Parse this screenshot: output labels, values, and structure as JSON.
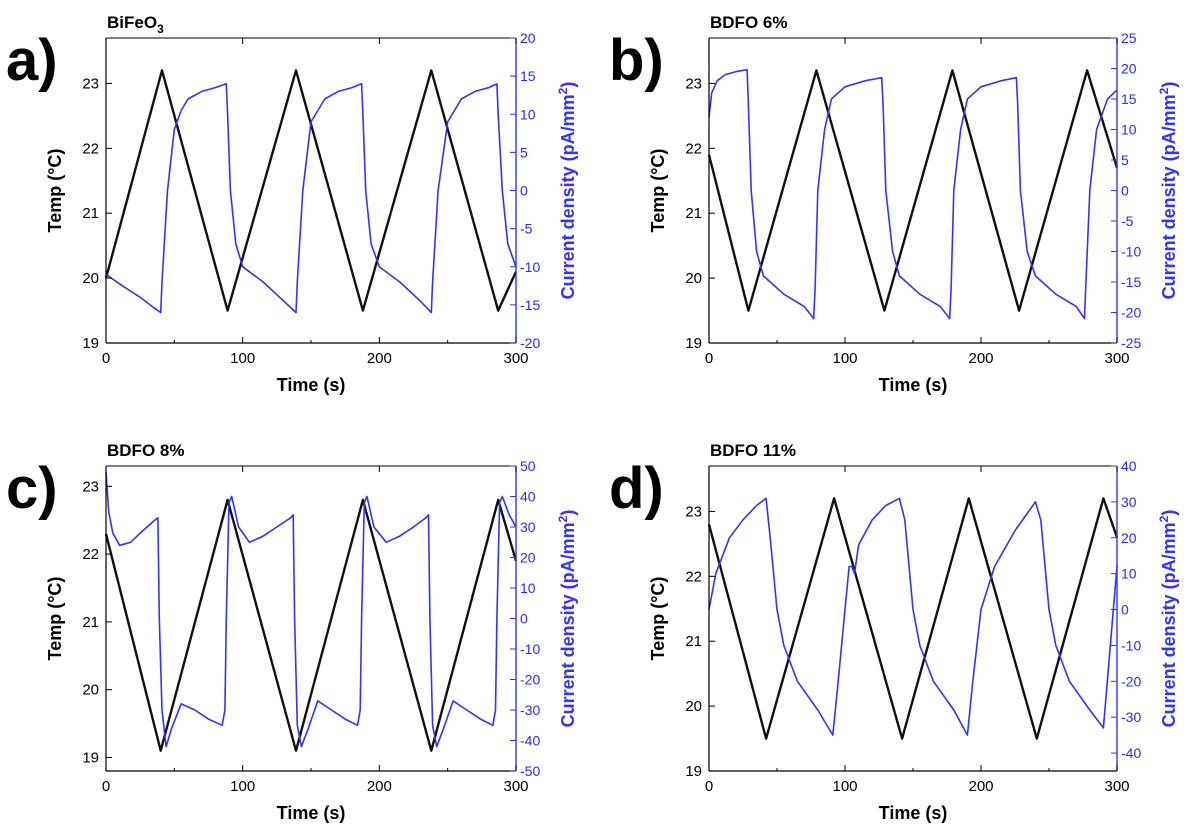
{
  "figure": {
    "panels": [
      {
        "letter": "a)",
        "title": "BiFeO",
        "title_sub": "3"
      },
      {
        "letter": "b)",
        "title": "BDFO 6%",
        "title_sub": ""
      },
      {
        "letter": "c)",
        "title": "BDFO 8%",
        "title_sub": ""
      },
      {
        "letter": "d)",
        "title": "BDFO 11%",
        "title_sub": ""
      }
    ]
  },
  "chart_data": [
    {
      "type": "line",
      "panel": "a)",
      "title": "BiFeO3",
      "xlabel": "Time (s)",
      "ylabel": "Temp (°C)",
      "y2label": "Current density (pA/mm²)",
      "y2label_sup": "2",
      "xlim": [
        0,
        300
      ],
      "ylim": [
        19,
        23.7
      ],
      "y2lim": [
        -20,
        20
      ],
      "xticks": [
        0,
        100,
        200,
        300
      ],
      "yticks": [
        19,
        20,
        21,
        22,
        23
      ],
      "y2ticks": [
        -20,
        -15,
        -10,
        -5,
        0,
        5,
        10,
        15,
        20
      ],
      "series": [
        {
          "axis": "left",
          "color": "#111111",
          "x": [
            0,
            41,
            89,
            139,
            188,
            238,
            287,
            300
          ],
          "y": [
            20.0,
            23.2,
            19.5,
            23.2,
            19.5,
            23.2,
            19.5,
            20.1
          ]
        },
        {
          "axis": "right",
          "color": "#3333ff",
          "x": [
            0,
            12,
            25,
            36,
            40,
            41,
            45,
            50,
            55,
            60,
            70,
            80,
            88,
            89,
            91,
            95,
            100,
            115,
            130,
            139,
            140,
            144,
            150,
            160,
            170,
            180,
            187,
            188,
            190,
            194,
            200,
            215,
            230,
            238,
            239,
            243,
            250,
            260,
            270,
            280,
            286,
            287,
            290,
            294,
            300
          ],
          "y": [
            -11,
            -12.5,
            -14,
            -15.5,
            -16,
            -12,
            0,
            8,
            10.5,
            12,
            13,
            13.5,
            14,
            10,
            0,
            -7,
            -10,
            -12,
            -14.5,
            -16,
            -12,
            0,
            9,
            12,
            13,
            13.5,
            14,
            10,
            0,
            -7,
            -10,
            -12,
            -14.5,
            -16,
            -12,
            0,
            9,
            12,
            13,
            13.5,
            14,
            10,
            0,
            -7,
            -10
          ]
        }
      ]
    },
    {
      "type": "line",
      "panel": "b)",
      "title": "BDFO 6%",
      "xlabel": "Time (s)",
      "ylabel": "Temp (°C)",
      "y2label": "Current density (pA/mm²)",
      "y2label_sup": "2",
      "xlim": [
        0,
        300
      ],
      "ylim": [
        19,
        23.7
      ],
      "y2lim": [
        -25,
        25
      ],
      "xticks": [
        0,
        100,
        200,
        300
      ],
      "yticks": [
        19,
        20,
        21,
        22,
        23
      ],
      "y2ticks": [
        -25,
        -20,
        -15,
        -10,
        -5,
        0,
        5,
        10,
        15,
        20,
        25
      ],
      "series": [
        {
          "axis": "left",
          "color": "#111111",
          "x": [
            0,
            29,
            79,
            129,
            179,
            228,
            278,
            300
          ],
          "y": [
            21.9,
            19.5,
            23.2,
            19.5,
            23.2,
            19.5,
            23.2,
            21.7
          ]
        },
        {
          "axis": "right",
          "color": "#3333ff",
          "x": [
            0,
            2,
            6,
            12,
            20,
            28,
            29,
            31,
            35,
            40,
            55,
            70,
            77,
            78,
            80,
            85,
            90,
            100,
            115,
            127,
            128,
            130,
            135,
            140,
            155,
            170,
            177,
            178,
            180,
            185,
            190,
            200,
            215,
            226,
            227,
            229,
            234,
            240,
            255,
            270,
            276,
            277,
            280,
            285,
            293,
            300
          ],
          "y": [
            12,
            16,
            18,
            19,
            19.5,
            19.8,
            14,
            0,
            -10,
            -14,
            -17,
            -19,
            -21,
            -16,
            0,
            10,
            15,
            17,
            18,
            18.5,
            14,
            0,
            -10,
            -14,
            -17,
            -19,
            -21,
            -16,
            0,
            10,
            15,
            17,
            18,
            18.5,
            14,
            0,
            -10,
            -14,
            -17,
            -19,
            -21,
            -16,
            0,
            10,
            15,
            16.5
          ]
        }
      ]
    },
    {
      "type": "line",
      "panel": "c)",
      "title": "BDFO 8%",
      "xlabel": "Time (s)",
      "ylabel": "Temp (°C)",
      "y2label": "Current density (pA/mm²)",
      "y2label_sup": "2",
      "xlim": [
        0,
        300
      ],
      "ylim": [
        18.8,
        23.3
      ],
      "y2lim": [
        -50,
        50
      ],
      "xticks": [
        0,
        100,
        200,
        300
      ],
      "yticks": [
        19,
        20,
        21,
        22,
        23
      ],
      "y2ticks": [
        -50,
        -40,
        -30,
        -20,
        -10,
        0,
        10,
        20,
        30,
        40,
        50
      ],
      "series": [
        {
          "axis": "left",
          "color": "#111111",
          "x": [
            0,
            40,
            89,
            139,
            188,
            238,
            287,
            300
          ],
          "y": [
            22.3,
            19.1,
            22.8,
            19.1,
            22.8,
            19.1,
            22.8,
            21.9
          ]
        },
        {
          "axis": "right",
          "color": "#3333ff",
          "x": [
            0,
            2,
            5,
            10,
            18,
            25,
            35,
            38,
            39,
            41,
            44,
            48,
            55,
            65,
            75,
            85,
            87,
            88,
            90,
            92,
            97,
            105,
            115,
            125,
            135,
            137,
            138,
            140,
            143,
            148,
            155,
            165,
            175,
            184,
            186,
            187,
            189,
            191,
            196,
            205,
            215,
            225,
            234,
            236,
            237,
            239,
            242,
            247,
            254,
            264,
            274,
            283,
            285,
            286,
            288,
            290,
            295,
            300
          ],
          "y": [
            48,
            35,
            28,
            24,
            25,
            28,
            32,
            33,
            0,
            -30,
            -42,
            -36,
            -28,
            -30,
            -33,
            -35,
            -30,
            0,
            38,
            40,
            30,
            25,
            27,
            30,
            33,
            34,
            0,
            -35,
            -42,
            -36,
            -27,
            -30,
            -33,
            -35,
            -30,
            0,
            38,
            40,
            30,
            25,
            27,
            30,
            33,
            34,
            0,
            -35,
            -42,
            -36,
            -27,
            -30,
            -33,
            -35,
            -30,
            0,
            38,
            40,
            34,
            30
          ]
        }
      ]
    },
    {
      "type": "line",
      "panel": "d)",
      "title": "BDFO 11%",
      "xlabel": "Time (s)",
      "ylabel": "Temp (°C)",
      "y2label": "Current density (pA/mm²)",
      "y2label_sup": "2",
      "xlim": [
        0,
        300
      ],
      "ylim": [
        19,
        23.7
      ],
      "y2lim": [
        -45,
        40
      ],
      "xticks": [
        0,
        100,
        200,
        300
      ],
      "yticks": [
        19,
        20,
        21,
        22,
        23
      ],
      "y2ticks": [
        -40,
        -30,
        -20,
        -10,
        0,
        10,
        20,
        30,
        40
      ],
      "series": [
        {
          "axis": "left",
          "color": "#111111",
          "x": [
            0,
            42,
            92,
            142,
            191,
            241,
            290,
            300
          ],
          "y": [
            22.8,
            19.5,
            23.2,
            19.5,
            23.2,
            19.5,
            23.2,
            22.6
          ]
        },
        {
          "axis": "right",
          "color": "#3333ff",
          "x": [
            0,
            5,
            15,
            25,
            35,
            42,
            45,
            50,
            55,
            65,
            80,
            91,
            95,
            100,
            103,
            105,
            107,
            110,
            120,
            130,
            140,
            144,
            150,
            155,
            165,
            180,
            190,
            194,
            200,
            210,
            225,
            240,
            244,
            250,
            255,
            265,
            280,
            290,
            294,
            300
          ],
          "y": [
            0,
            10,
            20,
            25,
            29,
            31,
            20,
            0,
            -10,
            -20,
            -28,
            -35,
            -20,
            0,
            12,
            12,
            10,
            18,
            25,
            29,
            31,
            25,
            0,
            -10,
            -20,
            -28,
            -35,
            -20,
            0,
            12,
            22,
            30,
            25,
            0,
            -10,
            -20,
            -28,
            -33,
            -15,
            12
          ]
        }
      ]
    }
  ]
}
